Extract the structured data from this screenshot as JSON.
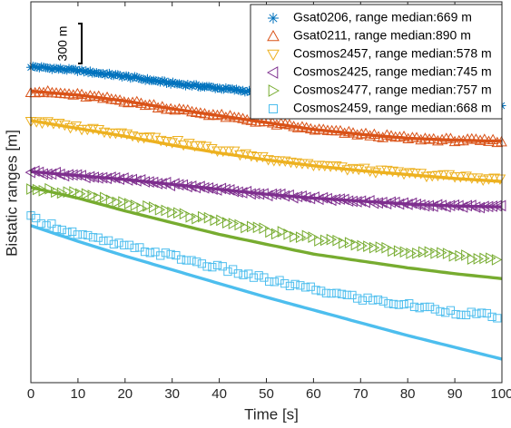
{
  "chart_data": {
    "type": "scatter",
    "xlabel": "Time [s]",
    "ylabel": "Bistatic ranges [m]",
    "xlim": [
      0,
      100
    ],
    "xticks": [
      0,
      10,
      20,
      30,
      40,
      50,
      60,
      70,
      80,
      90,
      100
    ],
    "grid": false,
    "legend_position": "top-right",
    "scale_bar": {
      "label": "300 m",
      "value": 300
    },
    "ylim": [
      -530,
      1410
    ],
    "series": [
      {
        "name": "Gsat0206, range median:669 m",
        "marker": "asterisk",
        "color": "#0072BD",
        "x": [
          0,
          10,
          20,
          30,
          40,
          50,
          60,
          70,
          80,
          90,
          100
        ],
        "y": [
          1080,
          1060,
          1030,
          995,
          970,
          945,
          920,
          905,
          890,
          880,
          875
        ],
        "fit_y": null
      },
      {
        "name": "Gsat0211, range median:890 m",
        "marker": "triangle-up",
        "color": "#D95319",
        "x": [
          0,
          10,
          20,
          30,
          40,
          50,
          60,
          70,
          80,
          90,
          100
        ],
        "y": [
          955,
          935,
          905,
          865,
          830,
          795,
          760,
          735,
          715,
          705,
          700
        ],
        "fit_y": [
          955,
          935,
          905,
          865,
          830,
          795,
          760,
          735,
          715,
          705,
          700
        ]
      },
      {
        "name": "Cosmos2457, range median:578 m",
        "marker": "triangle-down",
        "color": "#EDB120",
        "x": [
          0,
          10,
          20,
          30,
          40,
          50,
          60,
          70,
          80,
          90,
          100
        ],
        "y": [
          805,
          770,
          740,
          700,
          655,
          615,
          580,
          555,
          535,
          520,
          505
        ],
        "fit_y": [
          805,
          765,
          725,
          680,
          640,
          605,
          575,
          550,
          530,
          510,
          495
        ]
      },
      {
        "name": "Cosmos2425, range median:745 m",
        "marker": "triangle-left",
        "color": "#7E2F8E",
        "x": [
          0,
          10,
          20,
          30,
          40,
          50,
          60,
          70,
          80,
          90,
          100
        ],
        "y": [
          545,
          525,
          505,
          480,
          455,
          430,
          410,
          395,
          380,
          370,
          365
        ],
        "fit_y": [
          545,
          525,
          505,
          480,
          455,
          430,
          410,
          395,
          380,
          370,
          365
        ]
      },
      {
        "name": "Cosmos2477, range median:757 m",
        "marker": "triangle-right",
        "color": "#77AC30",
        "x": [
          0,
          10,
          20,
          30,
          40,
          50,
          60,
          70,
          80,
          90,
          100
        ],
        "y": [
          465,
          430,
          385,
          335,
          290,
          245,
          205,
          170,
          140,
          115,
          100
        ],
        "fit_y": [
          465,
          410,
          345,
          285,
          225,
          175,
          125,
          90,
          55,
          25,
          0
        ]
      },
      {
        "name": "Cosmos2459, range median:668 m",
        "marker": "square",
        "color": "#4DBEEE",
        "x": [
          0,
          10,
          20,
          30,
          40,
          50,
          60,
          70,
          80,
          90,
          100
        ],
        "y": [
          310,
          225,
          165,
          115,
          55,
          -5,
          -55,
          -100,
          -135,
          -170,
          -195
        ],
        "fit_y": [
          270,
          190,
          115,
          45,
          -25,
          -95,
          -160,
          -225,
          -290,
          -350,
          -410
        ]
      }
    ]
  }
}
